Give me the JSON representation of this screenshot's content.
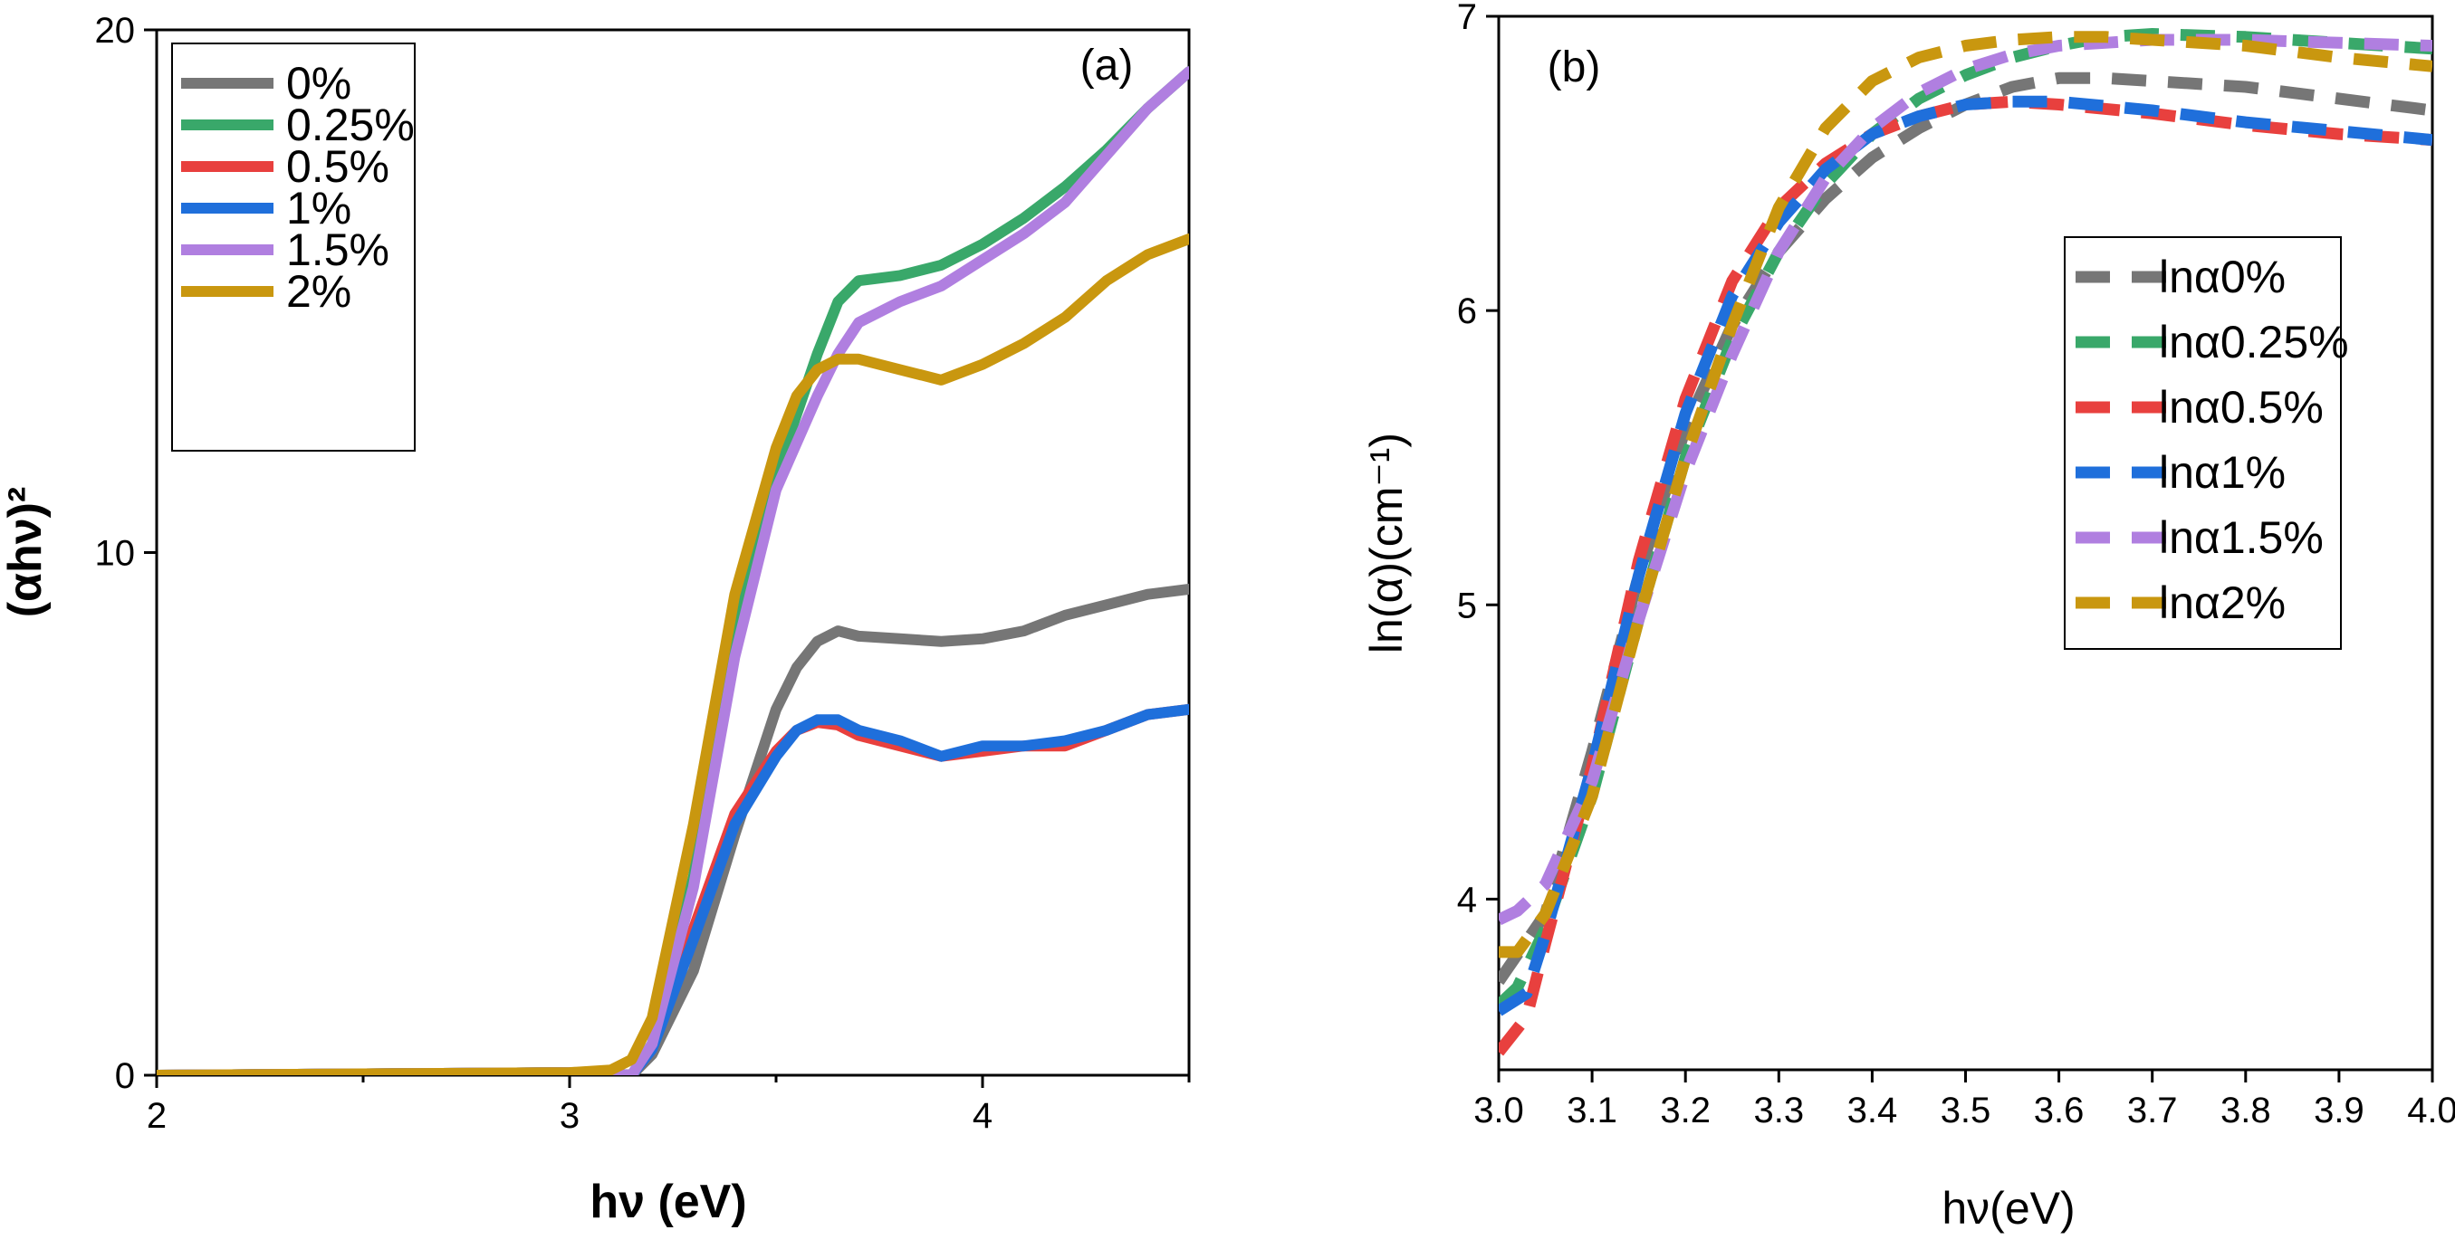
{
  "chart_data": [
    {
      "type": "line",
      "panel_label": "(a)",
      "xlabel": "hν (eV)",
      "ylabel": "(αhν)²",
      "xlim": [
        2,
        4.5
      ],
      "ylim": [
        0,
        20
      ],
      "x_ticks": [
        "2",
        "3",
        "4"
      ],
      "y_ticks": [
        "0",
        "10",
        "20"
      ],
      "grid": false,
      "legend_position": "top-left",
      "series": [
        {
          "name": "0%",
          "color": "#767676",
          "line_style": "solid",
          "x": [
            2.0,
            3.0,
            3.15,
            3.2,
            3.3,
            3.4,
            3.5,
            3.55,
            3.6,
            3.65,
            3.7,
            3.8,
            3.9,
            4.0,
            4.1,
            4.2,
            4.3,
            4.4,
            4.5
          ],
          "y": [
            0,
            0.05,
            0,
            0.4,
            2.0,
            4.6,
            7.0,
            7.8,
            8.3,
            8.5,
            8.4,
            8.35,
            8.3,
            8.35,
            8.5,
            8.8,
            9.0,
            9.2,
            9.3
          ]
        },
        {
          "name": "0.25%",
          "color": "#39a86a",
          "line_style": "solid",
          "x": [
            2.0,
            3.0,
            3.15,
            3.2,
            3.3,
            3.4,
            3.5,
            3.6,
            3.65,
            3.7,
            3.8,
            3.9,
            4.0,
            4.1,
            4.2,
            4.3,
            4.4,
            4.5
          ],
          "y": [
            0,
            0.05,
            0,
            0.6,
            3.8,
            8.5,
            11.5,
            13.8,
            14.8,
            15.2,
            15.3,
            15.5,
            15.9,
            16.4,
            17.0,
            17.7,
            18.5,
            19.2
          ]
        },
        {
          "name": "0.5%",
          "color": "#e8403e",
          "line_style": "solid",
          "x": [
            2.0,
            3.0,
            3.15,
            3.2,
            3.3,
            3.4,
            3.5,
            3.55,
            3.6,
            3.65,
            3.7,
            3.8,
            3.9,
            4.0,
            4.1,
            4.2,
            4.3,
            4.4,
            4.5
          ],
          "y": [
            0,
            0.05,
            0,
            0.5,
            2.8,
            5.0,
            6.2,
            6.6,
            6.75,
            6.7,
            6.5,
            6.3,
            6.1,
            6.2,
            6.3,
            6.3,
            6.6,
            6.9,
            7.0
          ]
        },
        {
          "name": "1%",
          "color": "#1f6fdb",
          "line_style": "solid",
          "x": [
            2.0,
            3.0,
            3.15,
            3.2,
            3.3,
            3.4,
            3.5,
            3.55,
            3.6,
            3.65,
            3.7,
            3.8,
            3.9,
            4.0,
            4.1,
            4.2,
            4.3,
            4.4,
            4.5
          ],
          "y": [
            0,
            0.05,
            0,
            0.5,
            2.6,
            4.8,
            6.1,
            6.6,
            6.8,
            6.8,
            6.6,
            6.4,
            6.1,
            6.3,
            6.3,
            6.4,
            6.6,
            6.9,
            7.0
          ]
        },
        {
          "name": "1.5%",
          "color": "#b07fe0",
          "line_style": "solid",
          "x": [
            2.0,
            3.0,
            3.15,
            3.2,
            3.3,
            3.4,
            3.5,
            3.6,
            3.65,
            3.7,
            3.8,
            3.9,
            4.0,
            4.1,
            4.2,
            4.3,
            4.4,
            4.5
          ],
          "y": [
            0,
            0.05,
            0,
            0.6,
            3.6,
            8.0,
            11.2,
            13.0,
            13.8,
            14.4,
            14.8,
            15.1,
            15.6,
            16.1,
            16.7,
            17.6,
            18.5,
            19.2
          ]
        },
        {
          "name": "2%",
          "color": "#c9970f",
          "line_style": "solid",
          "x": [
            2.0,
            3.0,
            3.1,
            3.15,
            3.2,
            3.3,
            3.4,
            3.5,
            3.55,
            3.6,
            3.65,
            3.7,
            3.8,
            3.9,
            4.0,
            4.1,
            4.2,
            4.3,
            4.4,
            4.5
          ],
          "y": [
            0,
            0.05,
            0.1,
            0.3,
            1.1,
            4.8,
            9.2,
            12.0,
            13.0,
            13.5,
            13.7,
            13.7,
            13.5,
            13.3,
            13.6,
            14.0,
            14.5,
            15.2,
            15.7,
            16.0
          ]
        }
      ]
    },
    {
      "type": "line",
      "panel_label": "(b)",
      "xlabel": "hν(eV)",
      "ylabel": "ln(α)(cm⁻¹)",
      "xlim": [
        3.0,
        4.0
      ],
      "ylim": [
        3.42,
        7.0
      ],
      "x_ticks": [
        "3.0",
        "3.1",
        "3.2",
        "3.3",
        "3.4",
        "3.5",
        "3.6",
        "3.7",
        "3.8",
        "3.9",
        "4.0"
      ],
      "y_ticks": [
        "4",
        "5",
        "6",
        "7"
      ],
      "grid": false,
      "legend_position": "right",
      "series": [
        {
          "name": "lnα0%",
          "color": "#767676",
          "line_style": "dashed",
          "x": [
            3.0,
            3.05,
            3.1,
            3.15,
            3.2,
            3.25,
            3.3,
            3.35,
            3.4,
            3.45,
            3.5,
            3.55,
            3.6,
            3.65,
            3.7,
            3.8,
            3.9,
            4.0
          ],
          "y": [
            3.72,
            3.95,
            4.5,
            5.1,
            5.6,
            5.95,
            6.2,
            6.38,
            6.52,
            6.62,
            6.7,
            6.76,
            6.79,
            6.79,
            6.78,
            6.76,
            6.72,
            6.68
          ]
        },
        {
          "name": "lnα0.25%",
          "color": "#39a86a",
          "line_style": "dashed",
          "x": [
            3.0,
            3.02,
            3.05,
            3.1,
            3.15,
            3.2,
            3.25,
            3.3,
            3.35,
            3.4,
            3.45,
            3.5,
            3.55,
            3.6,
            3.65,
            3.7,
            3.8,
            3.9,
            4.0
          ],
          "y": [
            3.64,
            3.7,
            3.9,
            4.35,
            4.95,
            5.5,
            5.9,
            6.2,
            6.43,
            6.6,
            6.72,
            6.8,
            6.86,
            6.9,
            6.93,
            6.94,
            6.93,
            6.91,
            6.89
          ]
        },
        {
          "name": "lnα0.5%",
          "color": "#e8403e",
          "line_style": "dashed",
          "x": [
            3.0,
            3.03,
            3.05,
            3.1,
            3.15,
            3.2,
            3.25,
            3.3,
            3.35,
            3.4,
            3.45,
            3.5,
            3.55,
            3.6,
            3.7,
            3.8,
            3.9,
            4.0
          ],
          "y": [
            3.48,
            3.6,
            3.85,
            4.45,
            5.15,
            5.7,
            6.1,
            6.35,
            6.5,
            6.6,
            6.66,
            6.7,
            6.71,
            6.7,
            6.67,
            6.63,
            6.6,
            6.58
          ]
        },
        {
          "name": "lnα1%",
          "color": "#1f6fdb",
          "line_style": "dashed",
          "x": [
            3.0,
            3.03,
            3.05,
            3.1,
            3.15,
            3.2,
            3.25,
            3.3,
            3.35,
            3.4,
            3.45,
            3.5,
            3.55,
            3.6,
            3.7,
            3.8,
            3.9,
            4.0
          ],
          "y": [
            3.62,
            3.68,
            3.88,
            4.45,
            5.1,
            5.65,
            6.05,
            6.3,
            6.48,
            6.6,
            6.66,
            6.7,
            6.71,
            6.71,
            6.68,
            6.64,
            6.61,
            6.58
          ]
        },
        {
          "name": "lnα1.5%",
          "color": "#b07fe0",
          "line_style": "dashed",
          "x": [
            3.0,
            3.02,
            3.05,
            3.1,
            3.15,
            3.2,
            3.25,
            3.3,
            3.35,
            3.4,
            3.45,
            3.5,
            3.55,
            3.6,
            3.65,
            3.7,
            3.8,
            3.9,
            4.0
          ],
          "y": [
            3.93,
            3.96,
            4.05,
            4.4,
            4.95,
            5.45,
            5.85,
            6.2,
            6.45,
            6.62,
            6.74,
            6.82,
            6.87,
            6.9,
            6.91,
            6.92,
            6.92,
            6.91,
            6.9
          ]
        },
        {
          "name": "lnα2%",
          "color": "#c9970f",
          "line_style": "dashed",
          "x": [
            3.0,
            3.02,
            3.05,
            3.1,
            3.15,
            3.2,
            3.25,
            3.3,
            3.35,
            3.4,
            3.45,
            3.5,
            3.55,
            3.6,
            3.65,
            3.7,
            3.8,
            3.9,
            4.0
          ],
          "y": [
            3.82,
            3.82,
            3.95,
            4.35,
            4.95,
            5.5,
            5.95,
            6.35,
            6.62,
            6.78,
            6.86,
            6.9,
            6.92,
            6.93,
            6.93,
            6.92,
            6.9,
            6.86,
            6.83
          ]
        }
      ]
    }
  ]
}
